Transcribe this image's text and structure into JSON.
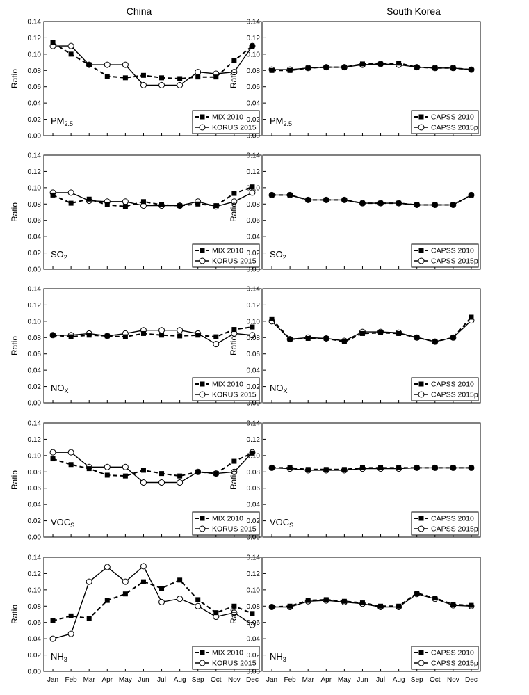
{
  "columns": [
    "China",
    "South Korea"
  ],
  "chart_data": [
    {
      "type": "line",
      "column": "China",
      "species_main": "PM",
      "species_sub": "2.5",
      "ylabel": "Ratio",
      "ylim": [
        0,
        0.14
      ],
      "categories": [
        "Jan",
        "Feb",
        "Mar",
        "Apr",
        "May",
        "Jun",
        "Jul",
        "Aug",
        "Sep",
        "Oct",
        "Nov",
        "Dec"
      ],
      "series": [
        {
          "name": "MIX 2010",
          "style": "dashed",
          "marker": "filled-square",
          "values": [
            0.114,
            0.1,
            0.087,
            0.073,
            0.071,
            0.074,
            0.071,
            0.07,
            0.072,
            0.072,
            0.092,
            0.11
          ]
        },
        {
          "name": "KORUS 2015",
          "style": "solid",
          "marker": "open-circle",
          "values": [
            0.11,
            0.11,
            0.087,
            0.087,
            0.087,
            0.062,
            0.062,
            0.062,
            0.078,
            0.076,
            0.078,
            0.11
          ]
        }
      ]
    },
    {
      "type": "line",
      "column": "South Korea",
      "species_main": "PM",
      "species_sub": "2.5",
      "ylabel": "Ratio",
      "ylim": [
        0,
        0.14
      ],
      "categories": [
        "Jan",
        "Feb",
        "Mar",
        "Apr",
        "May",
        "Jun",
        "Jul",
        "Aug",
        "Sep",
        "Oct",
        "Nov",
        "Dec"
      ],
      "series": [
        {
          "name": "CAPSS 2010",
          "style": "dashed",
          "marker": "filled-square",
          "values": [
            0.08,
            0.08,
            0.083,
            0.084,
            0.084,
            0.088,
            0.088,
            0.089,
            0.084,
            0.083,
            0.083,
            0.081
          ]
        },
        {
          "name": "CAPSS 2015p",
          "style": "solid",
          "marker": "open-circle",
          "values": [
            0.081,
            0.081,
            0.083,
            0.084,
            0.084,
            0.087,
            0.088,
            0.087,
            0.084,
            0.083,
            0.083,
            0.081
          ]
        }
      ]
    },
    {
      "type": "line",
      "column": "China",
      "species_main": "SO",
      "species_sub": "2",
      "ylabel": "Ratio",
      "ylim": [
        0,
        0.14
      ],
      "categories": [
        "Jan",
        "Feb",
        "Mar",
        "Apr",
        "May",
        "Jun",
        "Jul",
        "Aug",
        "Sep",
        "Oct",
        "Nov",
        "Dec"
      ],
      "series": [
        {
          "name": "MIX 2010",
          "style": "dashed",
          "marker": "filled-square",
          "values": [
            0.091,
            0.081,
            0.086,
            0.079,
            0.077,
            0.083,
            0.079,
            0.078,
            0.08,
            0.078,
            0.093,
            0.101
          ]
        },
        {
          "name": "KORUS 2015",
          "style": "solid",
          "marker": "open-circle",
          "values": [
            0.094,
            0.094,
            0.084,
            0.083,
            0.083,
            0.078,
            0.078,
            0.078,
            0.083,
            0.077,
            0.083,
            0.094
          ]
        }
      ]
    },
    {
      "type": "line",
      "column": "South Korea",
      "species_main": "SO",
      "species_sub": "2",
      "ylabel": "Ratio",
      "ylim": [
        0,
        0.14
      ],
      "categories": [
        "Jan",
        "Feb",
        "Mar",
        "Apr",
        "May",
        "Jun",
        "Jul",
        "Aug",
        "Sep",
        "Oct",
        "Nov",
        "Dec"
      ],
      "series": [
        {
          "name": "CAPSS 2010",
          "style": "dashed",
          "marker": "filled-square",
          "values": [
            0.091,
            0.091,
            0.085,
            0.085,
            0.085,
            0.081,
            0.081,
            0.081,
            0.079,
            0.079,
            0.079,
            0.091
          ]
        },
        {
          "name": "CAPSS 2015p",
          "style": "solid",
          "marker": "open-circle",
          "values": [
            0.091,
            0.091,
            0.085,
            0.085,
            0.085,
            0.081,
            0.081,
            0.081,
            0.079,
            0.079,
            0.079,
            0.091
          ]
        }
      ]
    },
    {
      "type": "line",
      "column": "China",
      "species_main": "NO",
      "species_sub": "X",
      "ylabel": "Ratio",
      "ylim": [
        0,
        0.14
      ],
      "categories": [
        "Jan",
        "Feb",
        "Mar",
        "Apr",
        "May",
        "Jun",
        "Jul",
        "Aug",
        "Sep",
        "Oct",
        "Nov",
        "Dec"
      ],
      "series": [
        {
          "name": "MIX 2010",
          "style": "dashed",
          "marker": "filled-square",
          "values": [
            0.083,
            0.081,
            0.083,
            0.082,
            0.081,
            0.085,
            0.083,
            0.082,
            0.083,
            0.081,
            0.09,
            0.093
          ]
        },
        {
          "name": "KORUS 2015",
          "style": "solid",
          "marker": "open-circle",
          "values": [
            0.083,
            0.083,
            0.085,
            0.082,
            0.085,
            0.089,
            0.089,
            0.089,
            0.085,
            0.072,
            0.085,
            0.083
          ]
        }
      ]
    },
    {
      "type": "line",
      "column": "South Korea",
      "species_main": "NO",
      "species_sub": "X",
      "ylabel": "Ratio",
      "ylim": [
        0,
        0.14
      ],
      "categories": [
        "Jan",
        "Feb",
        "Mar",
        "Apr",
        "May",
        "Jun",
        "Jul",
        "Aug",
        "Sep",
        "Oct",
        "Nov",
        "Dec"
      ],
      "series": [
        {
          "name": "CAPSS 2010",
          "style": "dashed",
          "marker": "filled-square",
          "values": [
            0.103,
            0.078,
            0.079,
            0.079,
            0.075,
            0.085,
            0.086,
            0.085,
            0.08,
            0.075,
            0.08,
            0.105
          ]
        },
        {
          "name": "CAPSS 2015p",
          "style": "solid",
          "marker": "open-circle",
          "values": [
            0.1,
            0.078,
            0.08,
            0.079,
            0.076,
            0.087,
            0.087,
            0.086,
            0.08,
            0.075,
            0.08,
            0.101
          ]
        }
      ]
    },
    {
      "type": "line",
      "column": "China",
      "species_main": "VOC",
      "species_sub": "S",
      "ylabel": "Ratio",
      "ylim": [
        0,
        0.14
      ],
      "categories": [
        "Jan",
        "Feb",
        "Mar",
        "Apr",
        "May",
        "Jun",
        "Jul",
        "Aug",
        "Sep",
        "Oct",
        "Nov",
        "Dec"
      ],
      "series": [
        {
          "name": "MIX 2010",
          "style": "dashed",
          "marker": "filled-square",
          "values": [
            0.096,
            0.089,
            0.084,
            0.076,
            0.075,
            0.082,
            0.078,
            0.075,
            0.08,
            0.078,
            0.093,
            0.103
          ]
        },
        {
          "name": "KORUS 2015",
          "style": "solid",
          "marker": "open-circle",
          "values": [
            0.104,
            0.104,
            0.086,
            0.086,
            0.086,
            0.067,
            0.067,
            0.067,
            0.08,
            0.078,
            0.08,
            0.104
          ]
        }
      ]
    },
    {
      "type": "line",
      "column": "South Korea",
      "species_main": "VOC",
      "species_sub": "S",
      "ylabel": "Ratio",
      "ylim": [
        0,
        0.14
      ],
      "categories": [
        "Jan",
        "Feb",
        "Mar",
        "Apr",
        "May",
        "Jun",
        "Jul",
        "Aug",
        "Sep",
        "Oct",
        "Nov",
        "Dec"
      ],
      "series": [
        {
          "name": "CAPSS 2010",
          "style": "dashed",
          "marker": "filled-square",
          "values": [
            0.085,
            0.085,
            0.083,
            0.083,
            0.083,
            0.085,
            0.085,
            0.085,
            0.085,
            0.085,
            0.085,
            0.085
          ]
        },
        {
          "name": "CAPSS 2015p",
          "style": "solid",
          "marker": "open-circle",
          "values": [
            0.085,
            0.084,
            0.082,
            0.082,
            0.082,
            0.084,
            0.084,
            0.084,
            0.085,
            0.085,
            0.085,
            0.085
          ]
        }
      ]
    },
    {
      "type": "line",
      "column": "China",
      "species_main": "NH",
      "species_sub": "3",
      "ylabel": "Ratio",
      "ylim": [
        0,
        0.14
      ],
      "categories": [
        "Jan",
        "Feb",
        "Mar",
        "Apr",
        "May",
        "Jun",
        "Jul",
        "Aug",
        "Sep",
        "Oct",
        "Nov",
        "Dec"
      ],
      "series": [
        {
          "name": "MIX 2010",
          "style": "dashed",
          "marker": "filled-square",
          "values": [
            0.062,
            0.068,
            0.065,
            0.087,
            0.095,
            0.11,
            0.102,
            0.112,
            0.088,
            0.072,
            0.08,
            0.071
          ]
        },
        {
          "name": "KORUS 2015",
          "style": "solid",
          "marker": "open-circle",
          "values": [
            0.04,
            0.046,
            0.11,
            0.128,
            0.11,
            0.129,
            0.085,
            0.089,
            0.08,
            0.067,
            0.072,
            0.057
          ]
        }
      ]
    },
    {
      "type": "line",
      "column": "South Korea",
      "species_main": "NH",
      "species_sub": "3",
      "ylabel": "Ratio",
      "ylim": [
        0,
        0.14
      ],
      "categories": [
        "Jan",
        "Feb",
        "Mar",
        "Apr",
        "May",
        "Jun",
        "Jul",
        "Aug",
        "Sep",
        "Oct",
        "Nov",
        "Dec"
      ],
      "series": [
        {
          "name": "CAPSS 2010",
          "style": "dashed",
          "marker": "filled-square",
          "values": [
            0.079,
            0.08,
            0.087,
            0.088,
            0.086,
            0.084,
            0.08,
            0.08,
            0.096,
            0.09,
            0.082,
            0.081
          ]
        },
        {
          "name": "CAPSS 2015p",
          "style": "solid",
          "marker": "open-circle",
          "values": [
            0.079,
            0.079,
            0.086,
            0.087,
            0.085,
            0.083,
            0.079,
            0.079,
            0.095,
            0.089,
            0.081,
            0.08
          ]
        }
      ]
    }
  ]
}
